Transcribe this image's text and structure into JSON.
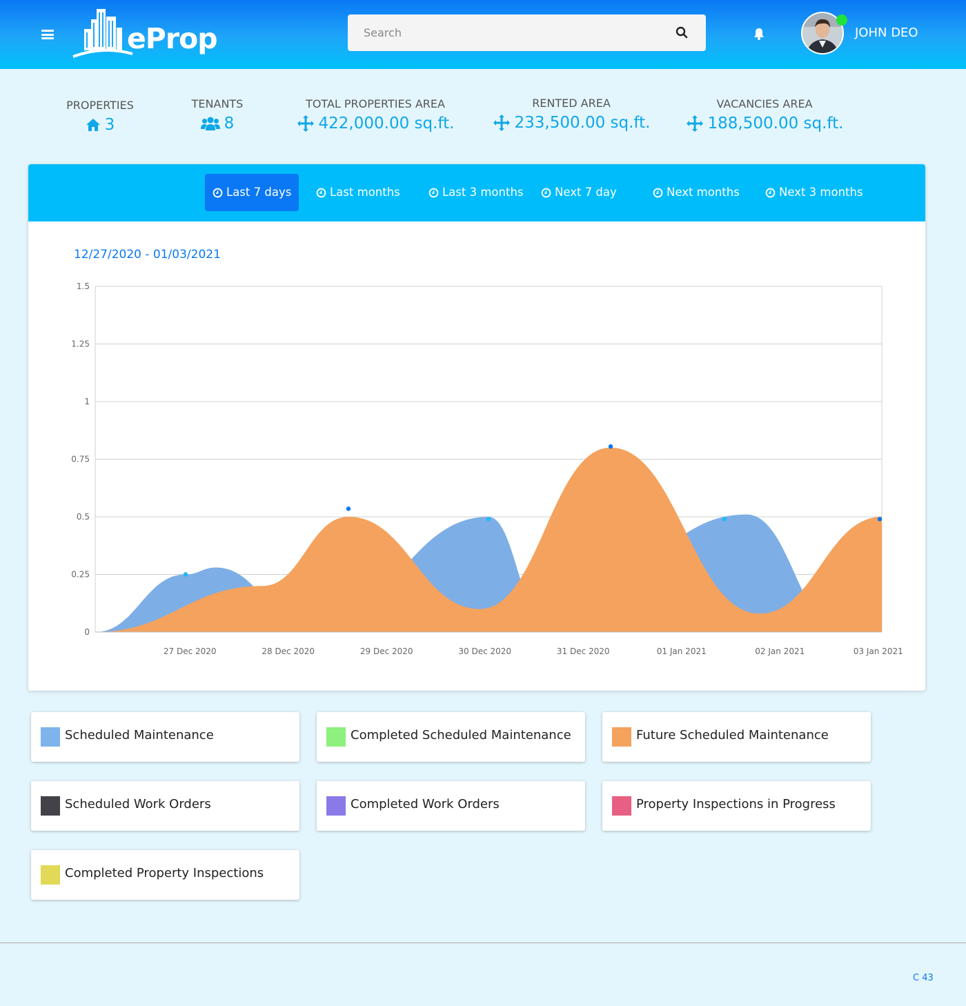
{
  "header": {
    "brand": "eProp",
    "search_placeholder": "Search",
    "user_name": "JOHN DEO"
  },
  "stats": [
    {
      "label": "PROPERTIES",
      "value": "3",
      "icon": "home-icon"
    },
    {
      "label": "TENANTS",
      "value": "8",
      "icon": "users-icon"
    },
    {
      "label": "TOTAL PROPERTIES AREA",
      "value": "422,000.00 sq.ft.",
      "icon": "arrows-icon"
    },
    {
      "label": "RENTED AREA",
      "value": "233,500.00 sq.ft.",
      "icon": "arrows-icon"
    },
    {
      "label": "VACANCIES AREA",
      "value": "188,500.00 sq.ft.",
      "icon": "arrows-icon"
    }
  ],
  "tabs": [
    {
      "label": "Last 7 days",
      "active": true
    },
    {
      "label": "Last months",
      "active": false
    },
    {
      "label": "Last 3 months",
      "active": false
    },
    {
      "label": "Next 7 day",
      "active": false
    },
    {
      "label": "Next months",
      "active": false
    },
    {
      "label": "Next 3 months",
      "active": false
    }
  ],
  "date_range": "12/27/2020 - 01/03/2021",
  "chart_data": {
    "type": "area",
    "categories": [
      "27 Dec 2020",
      "28 Dec 2020",
      "29 Dec 2020",
      "30 Dec 2020",
      "31 Dec 2020",
      "01 Jan 2021",
      "02 Jan 2021",
      "03 Jan 2021"
    ],
    "ylim": [
      0,
      1.5
    ],
    "yticks": [
      "0",
      "0.25",
      "0.5",
      "0.75",
      "1",
      "1.25",
      "1.5"
    ],
    "grid": true,
    "series": [
      {
        "name": "Scheduled Maintenance",
        "color": "#7eaee6",
        "values": [
          0.25,
          0.0,
          0.5,
          0.0,
          0.5,
          0.0
        ],
        "x": [
          "27 Dec 2020",
          "28 Dec 2020",
          "30 Dec 2020",
          "31 Dec 2020",
          "02 Jan 2021",
          "03 Jan 2021"
        ]
      },
      {
        "name": "Future Scheduled Maintenance",
        "color": "#f4a25e",
        "values": [
          0.0,
          0.5,
          0.0,
          0.8,
          0.0,
          0.5
        ],
        "x": [
          "27 Dec 2020",
          "29 Dec 2020",
          "30 Dec 2020",
          "01 Jan 2021",
          "02 Jan 2021",
          "03 Jan 2021"
        ]
      }
    ]
  },
  "legend": [
    {
      "label": "Scheduled Maintenance",
      "color": "#7eb3ec"
    },
    {
      "label": "Completed Scheduled Maintenance",
      "color": "#8ef07d"
    },
    {
      "label": "Future Scheduled Maintenance",
      "color": "#f4a25e"
    },
    {
      "label": "Scheduled Work Orders",
      "color": "#424248"
    },
    {
      "label": "Completed Work Orders",
      "color": "#8a7ae8"
    },
    {
      "label": "Property Inspections in Progress",
      "color": "#e75f82"
    },
    {
      "label": "Completed Property Inspections",
      "color": "#e1d957"
    }
  ],
  "footer": {
    "text": "C 43"
  }
}
